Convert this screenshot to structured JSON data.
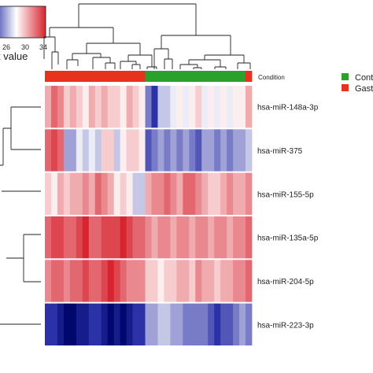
{
  "chart_data": {
    "type": "heatmap",
    "color_key": {
      "ticks": [
        "26",
        "30",
        "34"
      ],
      "label_fragment": "t value",
      "low_color": "#2b31a6",
      "mid_color": "#ffffff",
      "high_color": "#d7242f"
    },
    "annotation": {
      "label": "Condition",
      "legend": [
        {
          "name": "Cont",
          "color": "#2ca02c"
        },
        {
          "name": "Gast",
          "color": "#e8321e"
        }
      ],
      "columns": [
        "Gast",
        "Gast",
        "Gast",
        "Gast",
        "Gast",
        "Gast",
        "Gast",
        "Gast",
        "Gast",
        "Gast",
        "Gast",
        "Gast",
        "Gast",
        "Gast",
        "Gast",
        "Gast",
        "Cont",
        "Cont",
        "Cont",
        "Cont",
        "Cont",
        "Cont",
        "Cont",
        "Cont",
        "Cont",
        "Cont",
        "Cont",
        "Cont",
        "Cont",
        "Cont",
        "Cont",
        "Cont",
        "Gast"
      ]
    },
    "rows": [
      "hsa-miR-148a-3p",
      "hsa-miR-375",
      "hsa-miR-155-5p",
      "hsa-miR-135a-5p",
      "hsa-miR-204-5p",
      "hsa-miR-223-3p"
    ],
    "values": [
      [
        31,
        33,
        32,
        30,
        31,
        30,
        29,
        31,
        30,
        31,
        30,
        30,
        29,
        31,
        30,
        29,
        25,
        23,
        27,
        27,
        28,
        29,
        28,
        29,
        30,
        28,
        29,
        28,
        29,
        28,
        29,
        29,
        31
      ],
      [
        33,
        34,
        33,
        26,
        26,
        28,
        27,
        28,
        27,
        30,
        30,
        27,
        29,
        30,
        30,
        29,
        24,
        25,
        26,
        25,
        26,
        25,
        26,
        25,
        24,
        26,
        26,
        25,
        26,
        25,
        26,
        26,
        27
      ],
      [
        30,
        29,
        31,
        30,
        31,
        31,
        32,
        31,
        33,
        32,
        31,
        29,
        30,
        29,
        27,
        27,
        31,
        32,
        32,
        33,
        32,
        31,
        33,
        33,
        32,
        31,
        30,
        30,
        31,
        32,
        31,
        31,
        32
      ],
      [
        33,
        34,
        34,
        33,
        33,
        34,
        35,
        33,
        33,
        34,
        34,
        34,
        35,
        34,
        33,
        33,
        32,
        31,
        32,
        32,
        31,
        32,
        32,
        31,
        32,
        32,
        31,
        32,
        32,
        31,
        32,
        32,
        33
      ],
      [
        32,
        33,
        33,
        32,
        33,
        33,
        34,
        33,
        33,
        34,
        35,
        34,
        33,
        32,
        32,
        32,
        30,
        30,
        29,
        30,
        30,
        31,
        31,
        30,
        32,
        31,
        31,
        30,
        31,
        31,
        32,
        32,
        33
      ],
      [
        23,
        23,
        22,
        21,
        21,
        22,
        22,
        23,
        23,
        22,
        21,
        22,
        21,
        22,
        23,
        23,
        26,
        26,
        27,
        27,
        26,
        26,
        25,
        25,
        25,
        25,
        24,
        23,
        24,
        24,
        25,
        26,
        25
      ]
    ],
    "vmin": 20,
    "vmax": 35
  }
}
